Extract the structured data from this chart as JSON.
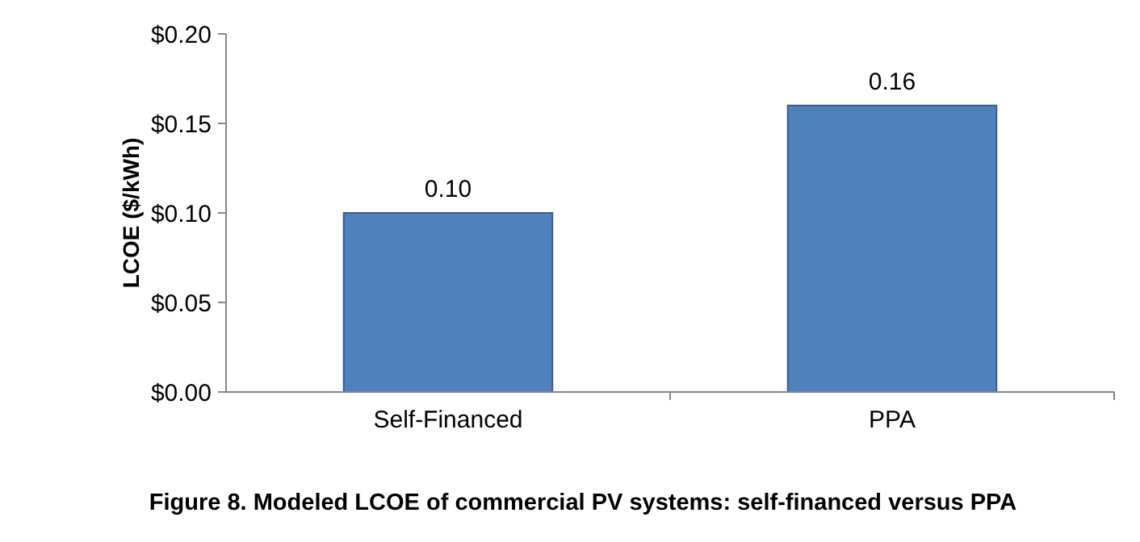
{
  "chart_data": {
    "type": "bar",
    "title": "Figure 8. Modeled LCOE of commercial PV systems: self-financed versus PPA",
    "ylabel": "LCOE ($/kWh)",
    "categories": [
      "Self-Financed",
      "PPA"
    ],
    "values": [
      0.1,
      0.16
    ],
    "value_labels": [
      "0.10",
      "0.16"
    ],
    "color": "#4f81bd",
    "ylim": [
      0,
      0.2
    ],
    "yticks": [
      {
        "value": 0,
        "label": "$0.00"
      },
      {
        "value": 0.05,
        "label": "$0.05"
      },
      {
        "value": 0.1,
        "label": "$0.10"
      },
      {
        "value": 0.15,
        "label": "$0.15"
      },
      {
        "value": 0.2,
        "label": "$0.20"
      }
    ],
    "grid": false
  }
}
